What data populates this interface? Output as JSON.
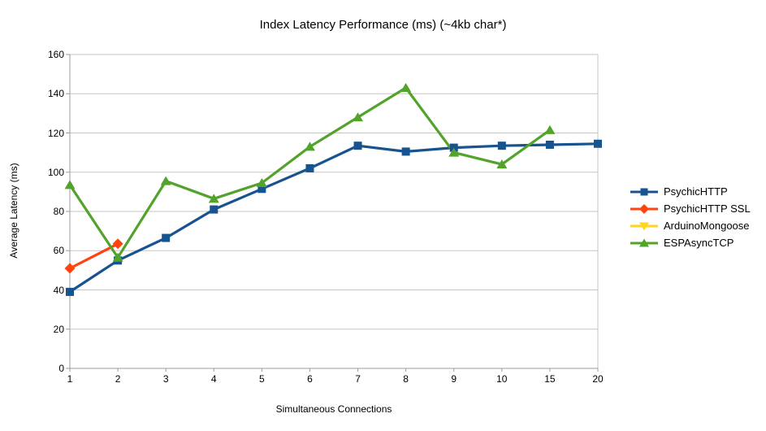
{
  "chart_data": {
    "type": "line",
    "title": "Index Latency Performance (ms) (~4kb char*)",
    "xlabel": "Simultaneous Connections",
    "ylabel": "Average Latency (ms)",
    "categories": [
      "1",
      "2",
      "3",
      "4",
      "5",
      "6",
      "7",
      "8",
      "9",
      "10",
      "15",
      "20"
    ],
    "ylim": [
      0,
      160
    ],
    "y_tick_step": 20,
    "y_ticks": [
      0,
      20,
      40,
      60,
      80,
      100,
      120,
      140,
      160
    ],
    "grid": true,
    "legend_position": "right",
    "series": [
      {
        "name": "PsychicHTTP",
        "color": "#17548f",
        "marker": "square",
        "values": [
          39,
          55,
          66.5,
          81,
          91.5,
          102,
          113.5,
          110.5,
          112.5,
          113.5,
          114,
          114.5
        ]
      },
      {
        "name": "PsychicHTTP SSL",
        "color": "#ff420e",
        "marker": "diamond",
        "values": [
          51,
          63.5,
          null,
          null,
          null,
          null,
          null,
          null,
          null,
          null,
          null,
          null
        ]
      },
      {
        "name": "ArduinoMongoose",
        "color": "#ffd320",
        "marker": "triangle-down",
        "values": [
          null,
          null,
          null,
          null,
          null,
          null,
          null,
          null,
          null,
          null,
          null,
          null
        ]
      },
      {
        "name": "ESPAsyncTCP",
        "color": "#52a32a",
        "marker": "triangle-up",
        "values": [
          93.5,
          56.5,
          95.5,
          86.5,
          94.5,
          113,
          128,
          143,
          110,
          104,
          121.5,
          null
        ]
      }
    ],
    "colors": {
      "gridline": "#c6c6c6",
      "axis": "#9b9b9b",
      "background": "#ffffff",
      "text": "#000000"
    }
  }
}
